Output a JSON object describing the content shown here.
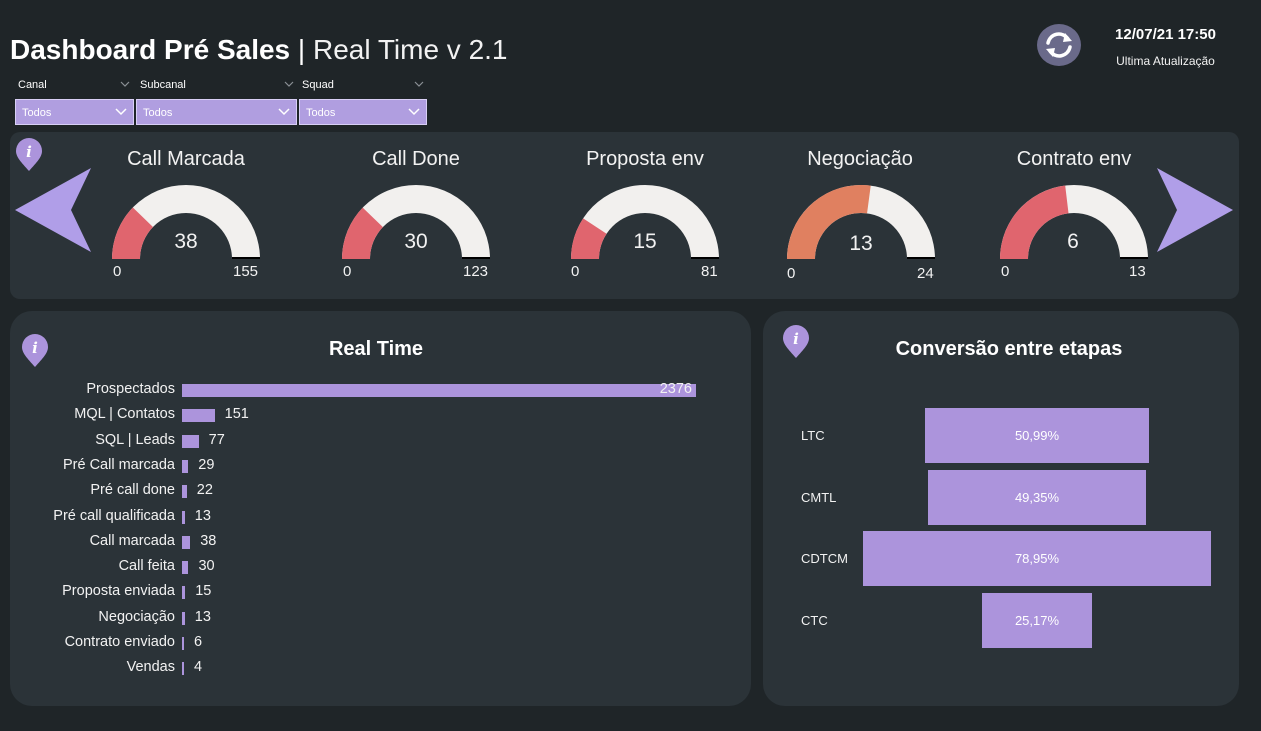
{
  "header": {
    "title_bold": "Dashboard Pré Sales",
    "title_sep": " | ",
    "title_light": "Real Time v 2.1",
    "datetime": "12/07/21 17:50",
    "updated_label": "Ultima Atualização",
    "refresh_icon": "refresh-icon"
  },
  "filters": [
    {
      "label": "Canal",
      "value": "Todos"
    },
    {
      "label": "Subcanal",
      "value": "Todos"
    },
    {
      "label": "Squad",
      "value": "Todos"
    }
  ],
  "colors": {
    "accent": "#ac94dc",
    "gauge_red": "#e0656e",
    "gauge_orange": "#e08060",
    "gauge_track": "#f2f0ee",
    "panel": "#2b3338",
    "background": "#1f2528"
  },
  "gauges": [
    {
      "title": "Call Marcada",
      "value": "38",
      "min": "0",
      "max": "155",
      "fill": 0.245,
      "color": "#e0656e"
    },
    {
      "title": "Call Done",
      "value": "30",
      "min": "0",
      "max": "123",
      "fill": 0.244,
      "color": "#e0656e"
    },
    {
      "title": "Proposta env",
      "value": "15",
      "min": "0",
      "max": "81",
      "fill": 0.185,
      "color": "#e0656e"
    },
    {
      "title": "Negociação",
      "value": "13",
      "min": "0",
      "max": "24",
      "fill": 0.542,
      "color": "#e08060"
    },
    {
      "title": "Contrato env",
      "value": "6",
      "min": "0",
      "max": "13",
      "fill": 0.462,
      "color": "#e0656e"
    }
  ],
  "realtime": {
    "title": "Real Time",
    "rows": [
      {
        "label": "Prospectados",
        "value": 2376
      },
      {
        "label": "MQL | Contatos",
        "value": 151
      },
      {
        "label": "SQL | Leads",
        "value": 77
      },
      {
        "label": "Pré Call marcada",
        "value": 29
      },
      {
        "label": "Pré call done",
        "value": 22
      },
      {
        "label": "Pré call qualificada",
        "value": 13
      },
      {
        "label": "Call marcada",
        "value": 38
      },
      {
        "label": "Call feita",
        "value": 30
      },
      {
        "label": "Proposta enviada",
        "value": 15
      },
      {
        "label": "Negociação",
        "value": 13
      },
      {
        "label": "Contrato enviado",
        "value": 6
      },
      {
        "label": "Vendas",
        "value": 4
      }
    ]
  },
  "conversion": {
    "title": "Conversão entre etapas",
    "rows": [
      {
        "label": "LTC",
        "value": "50,99%",
        "pct": 50.99
      },
      {
        "label": "CMTL",
        "value": "49,35%",
        "pct": 49.35
      },
      {
        "label": "CDTCM",
        "value": "78,95%",
        "pct": 78.95
      },
      {
        "label": "CTC",
        "value": "25,17%",
        "pct": 25.17
      }
    ]
  }
}
